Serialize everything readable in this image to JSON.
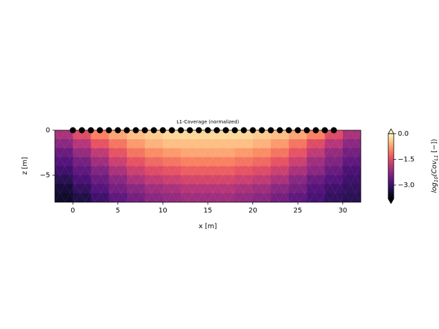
{
  "chart_data": {
    "type": "heatmap",
    "title": "L1-Coverage (normalized)",
    "x_label": "x [m]",
    "y_label": "z [m]",
    "xlim": [
      -2,
      32
    ],
    "ylim": [
      -8,
      0
    ],
    "xticks": [
      0,
      5,
      10,
      15,
      20,
      25,
      30
    ],
    "yticks": [
      0,
      {
        "value": -5,
        "label": "−5"
      }
    ],
    "x": [
      -1,
      1,
      3,
      5,
      7,
      9,
      11,
      13,
      15,
      17,
      19,
      21,
      23,
      25,
      27,
      29,
      31
    ],
    "z": [
      -0.5,
      -1.5,
      -2.5,
      -3.5,
      -4.5,
      -5.5,
      -6.5,
      -7.5
    ],
    "values": [
      [
        -2.0,
        -1.5,
        -1.0,
        -0.7,
        -0.5,
        -0.4,
        -0.3,
        -0.3,
        -0.3,
        -0.3,
        -0.3,
        -0.4,
        -0.5,
        -0.7,
        -1.0,
        -1.5,
        -2.0
      ],
      [
        -2.3,
        -1.9,
        -1.4,
        -1.1,
        -0.8,
        -0.6,
        -0.5,
        -0.5,
        -0.5,
        -0.5,
        -0.5,
        -0.6,
        -0.8,
        -1.1,
        -1.5,
        -1.9,
        -2.3
      ],
      [
        -2.6,
        -2.2,
        -1.8,
        -1.4,
        -1.1,
        -0.9,
        -0.8,
        -0.7,
        -0.7,
        -0.7,
        -0.8,
        -0.9,
        -1.1,
        -1.4,
        -1.8,
        -2.2,
        -2.5
      ],
      [
        -2.8,
        -2.5,
        -2.1,
        -1.7,
        -1.4,
        -1.2,
        -1.1,
        -1.0,
        -1.0,
        -1.0,
        -1.1,
        -1.2,
        -1.4,
        -1.7,
        -2.1,
        -2.4,
        -2.7
      ],
      [
        -3.0,
        -2.7,
        -2.4,
        -2.0,
        -1.7,
        -1.5,
        -1.4,
        -1.3,
        -1.3,
        -1.3,
        -1.4,
        -1.5,
        -1.7,
        -2.0,
        -2.3,
        -2.6,
        -2.9
      ],
      [
        -3.2,
        -2.9,
        -2.6,
        -2.3,
        -2.0,
        -1.8,
        -1.7,
        -1.6,
        -1.6,
        -1.6,
        -1.7,
        -1.8,
        -2.0,
        -2.3,
        -2.6,
        -2.8,
        -3.0
      ],
      [
        -3.4,
        -3.1,
        -2.8,
        -2.5,
        -2.3,
        -2.1,
        -2.0,
        -1.9,
        -1.9,
        -1.9,
        -2.0,
        -2.1,
        -2.3,
        -2.5,
        -2.8,
        -3.0,
        -3.1
      ],
      [
        -3.5,
        -3.3,
        -3.0,
        -2.7,
        -2.5,
        -2.3,
        -2.2,
        -2.1,
        -2.1,
        -2.1,
        -2.2,
        -2.3,
        -2.5,
        -2.7,
        -2.9,
        -3.1,
        -3.2
      ]
    ],
    "colormap": "magma",
    "clim": [
      -3.8,
      0
    ],
    "cticks": [
      {
        "value": 0,
        "label": "0.0"
      },
      {
        "value": -1.5,
        "label": "−1.5"
      },
      {
        "value": -3,
        "label": "−3.0"
      }
    ],
    "colorbar_label": [
      "log",
      "10",
      "(Cov",
      "L1",
      " [−])"
    ],
    "electrodes": {
      "color": "#000000",
      "x": [
        0,
        1,
        2,
        3,
        4,
        5,
        6,
        7,
        8,
        9,
        10,
        11,
        12,
        13,
        14,
        15,
        16,
        17,
        18,
        19,
        20,
        21,
        22,
        23,
        24,
        25,
        26,
        27,
        28,
        29
      ],
      "z": [
        0,
        0,
        0,
        0,
        0,
        0,
        0,
        0,
        0,
        0,
        0,
        0,
        0,
        0,
        0,
        0,
        0,
        0,
        0,
        0,
        0,
        0,
        0,
        0,
        0,
        0,
        0,
        0,
        0,
        0
      ]
    }
  }
}
